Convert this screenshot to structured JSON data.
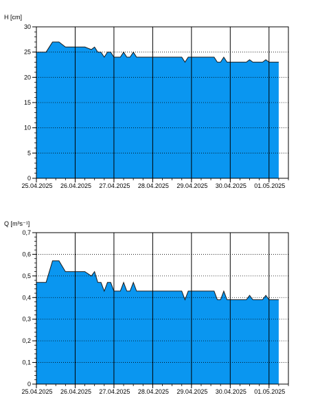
{
  "colors": {
    "fill": "#0a96f0",
    "line": "#1a1a1a",
    "grid": "#000000",
    "frame": "#000000"
  },
  "x_labels": [
    "25.04.2025",
    "26.04.2025",
    "27.04.2025",
    "28.04.2025",
    "29.04.2025",
    "30.04.2025",
    "01.05.2025"
  ],
  "chart_data": [
    {
      "type": "area",
      "ylabel": "H [cm]",
      "ylim": [
        0,
        30
      ],
      "y_ticks": [
        "0",
        "5",
        "10",
        "15",
        "20",
        "25",
        "30"
      ],
      "y_tick_values": [
        0,
        5,
        10,
        15,
        20,
        25,
        30
      ],
      "x_range": [
        "2025-04-25 00:00",
        "2025-05-01 12:00"
      ],
      "x_tick_dates": [
        "2025-04-25",
        "2025-04-26",
        "2025-04-27",
        "2025-04-28",
        "2025-04-29",
        "2025-04-30",
        "2025-05-01"
      ],
      "grid": true,
      "x": [
        "2025-04-24 21:00",
        "2025-04-25 06:00",
        "2025-04-25 08:00",
        "2025-04-25 10:00",
        "2025-04-25 14:00",
        "2025-04-25 18:00",
        "2025-04-25 20:00",
        "2025-04-26 06:00",
        "2025-04-26 10:00",
        "2025-04-26 12:00",
        "2025-04-26 14:00",
        "2025-04-26 16:00",
        "2025-04-26 18:00",
        "2025-04-26 20:00",
        "2025-04-26 22:00",
        "2025-04-27 00:00",
        "2025-04-27 04:00",
        "2025-04-27 06:00",
        "2025-04-27 08:00",
        "2025-04-27 10:00",
        "2025-04-27 12:00",
        "2025-04-27 14:00",
        "2025-04-27 16:00",
        "2025-04-27 18:00",
        "2025-04-27 20:00",
        "2025-04-27 22:00",
        "2025-04-28 06:00",
        "2025-04-28 12:00",
        "2025-04-28 18:00",
        "2025-04-28 20:00",
        "2025-04-28 22:00",
        "2025-04-29 00:00",
        "2025-04-29 14:00",
        "2025-04-29 16:00",
        "2025-04-29 18:00",
        "2025-04-29 20:00",
        "2025-04-29 22:00",
        "2025-04-30 10:00",
        "2025-04-30 12:00",
        "2025-04-30 14:00",
        "2025-04-30 20:00",
        "2025-04-30 22:00",
        "2025-05-01 00:00",
        "2025-05-01 06:00"
      ],
      "values": [
        25,
        25,
        26,
        27,
        27,
        26,
        26,
        26,
        25.5,
        26,
        25,
        25,
        24,
        25,
        25,
        24,
        24,
        25,
        24,
        24,
        25,
        24,
        24,
        24,
        24,
        24,
        24,
        24,
        24,
        23,
        24,
        24,
        24,
        23,
        23,
        24,
        23,
        23,
        23.5,
        23,
        23,
        23.5,
        23,
        23
      ]
    },
    {
      "type": "area",
      "ylabel": "Q [m³s⁻¹]",
      "ylim": [
        0,
        0.7
      ],
      "y_ticks": [
        "0",
        "0,1",
        "0,2",
        "0,3",
        "0,4",
        "0,5",
        "0,6",
        "0,7"
      ],
      "y_tick_values": [
        0,
        0.1,
        0.2,
        0.3,
        0.4,
        0.5,
        0.6,
        0.7
      ],
      "x_range": [
        "2025-04-25 00:00",
        "2025-05-01 12:00"
      ],
      "x_tick_dates": [
        "2025-04-25",
        "2025-04-26",
        "2025-04-27",
        "2025-04-28",
        "2025-04-29",
        "2025-04-30",
        "2025-05-01"
      ],
      "grid": true,
      "x": [
        "2025-04-24 21:00",
        "2025-04-25 06:00",
        "2025-04-25 08:00",
        "2025-04-25 10:00",
        "2025-04-25 14:00",
        "2025-04-25 18:00",
        "2025-04-25 20:00",
        "2025-04-26 06:00",
        "2025-04-26 10:00",
        "2025-04-26 12:00",
        "2025-04-26 14:00",
        "2025-04-26 16:00",
        "2025-04-26 18:00",
        "2025-04-26 20:00",
        "2025-04-26 22:00",
        "2025-04-27 00:00",
        "2025-04-27 04:00",
        "2025-04-27 06:00",
        "2025-04-27 08:00",
        "2025-04-27 10:00",
        "2025-04-27 12:00",
        "2025-04-27 14:00",
        "2025-04-27 16:00",
        "2025-04-27 18:00",
        "2025-04-27 20:00",
        "2025-04-27 22:00",
        "2025-04-28 06:00",
        "2025-04-28 12:00",
        "2025-04-28 18:00",
        "2025-04-28 20:00",
        "2025-04-28 22:00",
        "2025-04-29 00:00",
        "2025-04-29 14:00",
        "2025-04-29 16:00",
        "2025-04-29 18:00",
        "2025-04-29 20:00",
        "2025-04-29 22:00",
        "2025-04-30 10:00",
        "2025-04-30 12:00",
        "2025-04-30 14:00",
        "2025-04-30 20:00",
        "2025-04-30 22:00",
        "2025-05-01 00:00",
        "2025-05-01 06:00"
      ],
      "values": [
        0.47,
        0.47,
        0.52,
        0.57,
        0.57,
        0.52,
        0.52,
        0.52,
        0.5,
        0.52,
        0.47,
        0.47,
        0.43,
        0.47,
        0.47,
        0.43,
        0.43,
        0.47,
        0.43,
        0.43,
        0.47,
        0.43,
        0.43,
        0.43,
        0.43,
        0.43,
        0.43,
        0.43,
        0.43,
        0.39,
        0.43,
        0.43,
        0.43,
        0.39,
        0.39,
        0.43,
        0.39,
        0.39,
        0.41,
        0.39,
        0.39,
        0.41,
        0.39,
        0.39
      ]
    }
  ]
}
